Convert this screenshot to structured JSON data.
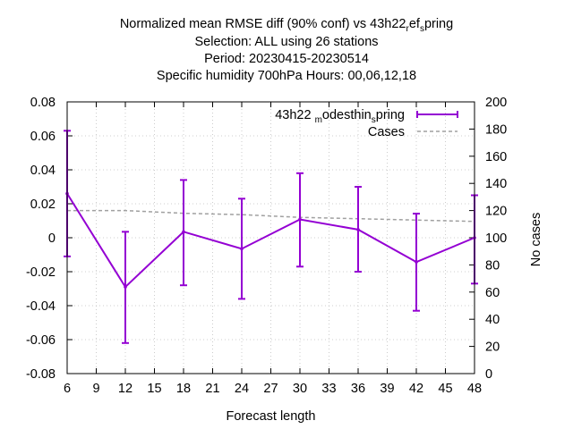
{
  "chart_data": {
    "type": "line",
    "title_lines": [
      "Normalized mean RMSE diff (90% conf) vs 43h22",
      "Selection: ALL using    26 stations",
      "Period: 20230415-20230514",
      "Specific humidity 700hPa   Hours:  00,06,12,18"
    ],
    "title_sub": {
      "pre": "43h22",
      "parts": [
        [
          "r",
          "sub"
        ],
        [
          "ef",
          "base"
        ],
        [
          "s",
          "sub"
        ],
        [
          "pring",
          "base"
        ]
      ]
    },
    "xlabel": "Forecast length",
    "ylabel": "",
    "y2label": "No cases",
    "xlim": [
      6,
      48
    ],
    "ylim": [
      -0.08,
      0.08
    ],
    "y2lim": [
      0,
      200
    ],
    "xticks": [
      "6",
      "9",
      "12",
      "15",
      "18",
      "21",
      "24",
      "27",
      "30",
      "33",
      "36",
      "39",
      "42",
      "45",
      "48"
    ],
    "yticks": [
      "0.08",
      "0.06",
      "0.04",
      "0.02",
      "0",
      "-0.02",
      "-0.04",
      "-0.06",
      "-0.08"
    ],
    "y2ticks": [
      "200",
      "180",
      "160",
      "140",
      "120",
      "100",
      "80",
      "60",
      "40",
      "20",
      "0"
    ],
    "legend_position": "top-right",
    "series": [
      {
        "name": "43h22 m odesthin s pring",
        "name_parts": [
          [
            "43h22 ",
            "base"
          ],
          [
            "m",
            "sub"
          ],
          [
            "odesthin",
            "base"
          ],
          [
            "s",
            "sub"
          ],
          [
            "pring",
            "base"
          ]
        ],
        "color": "#9400d3",
        "x": [
          6,
          12,
          18,
          24,
          30,
          36,
          42,
          48
        ],
        "y": [
          0.026,
          -0.029,
          0.0035,
          -0.0065,
          0.0108,
          0.0048,
          -0.0143,
          0.0
        ],
        "err_low": [
          -0.011,
          -0.062,
          -0.028,
          -0.036,
          -0.017,
          -0.02,
          -0.043,
          -0.027
        ],
        "err_high": [
          0.063,
          0.0035,
          0.034,
          0.023,
          0.038,
          0.03,
          0.0142,
          0.025
        ]
      },
      {
        "name": "Cases",
        "color": "#a0a0a0",
        "axis": "y2",
        "x": [
          6,
          12,
          18,
          24,
          30,
          36,
          42,
          48
        ],
        "y": [
          120,
          120,
          118,
          117,
          115,
          114,
          113,
          112
        ]
      }
    ]
  }
}
